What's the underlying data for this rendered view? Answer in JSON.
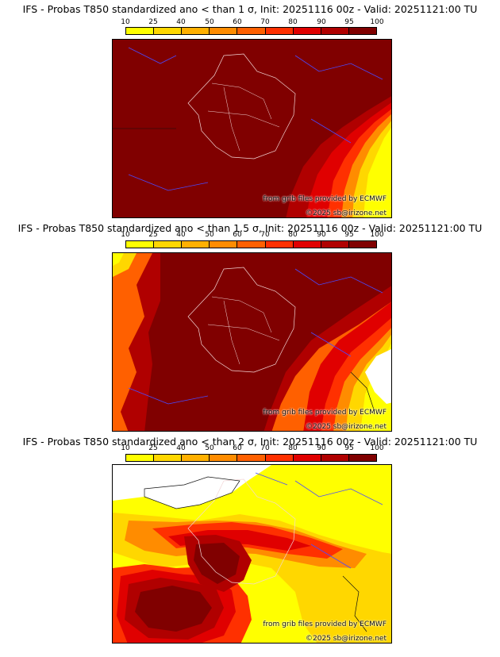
{
  "colorbar": {
    "labels": [
      "10",
      "25",
      "40",
      "50",
      "60",
      "70",
      "80",
      "90",
      "95",
      "100"
    ],
    "colors": [
      "#ffff00",
      "#ffd700",
      "#ffb000",
      "#ff8c00",
      "#ff6000",
      "#ff3000",
      "#e00000",
      "#b00000",
      "#800000"
    ]
  },
  "panels": [
    {
      "title": "IFS - Probas T850  standardized ano < than 1 σ, Init: 20251116 00z - Valid: 20251121:00 TU",
      "credit_source": "from grib files provided by ECMWF",
      "credit_copyright": "©2025 sb@irizone.net"
    },
    {
      "title": "IFS - Probas T850  standardized ano < than 1.5 σ, Init: 20251116 00z - Valid: 20251121:00 TU",
      "credit_source": "from grib files provided by ECMWF",
      "credit_copyright": "©2025 sb@irizone.net"
    },
    {
      "title": "IFS - Probas T850  standardized ano < than 2 σ, Init: 20251116 00z - Valid: 20251121:00 TU",
      "credit_source": "from grib files provided by ECMWF",
      "credit_copyright": "©2025 sb@irizone.net"
    }
  ]
}
